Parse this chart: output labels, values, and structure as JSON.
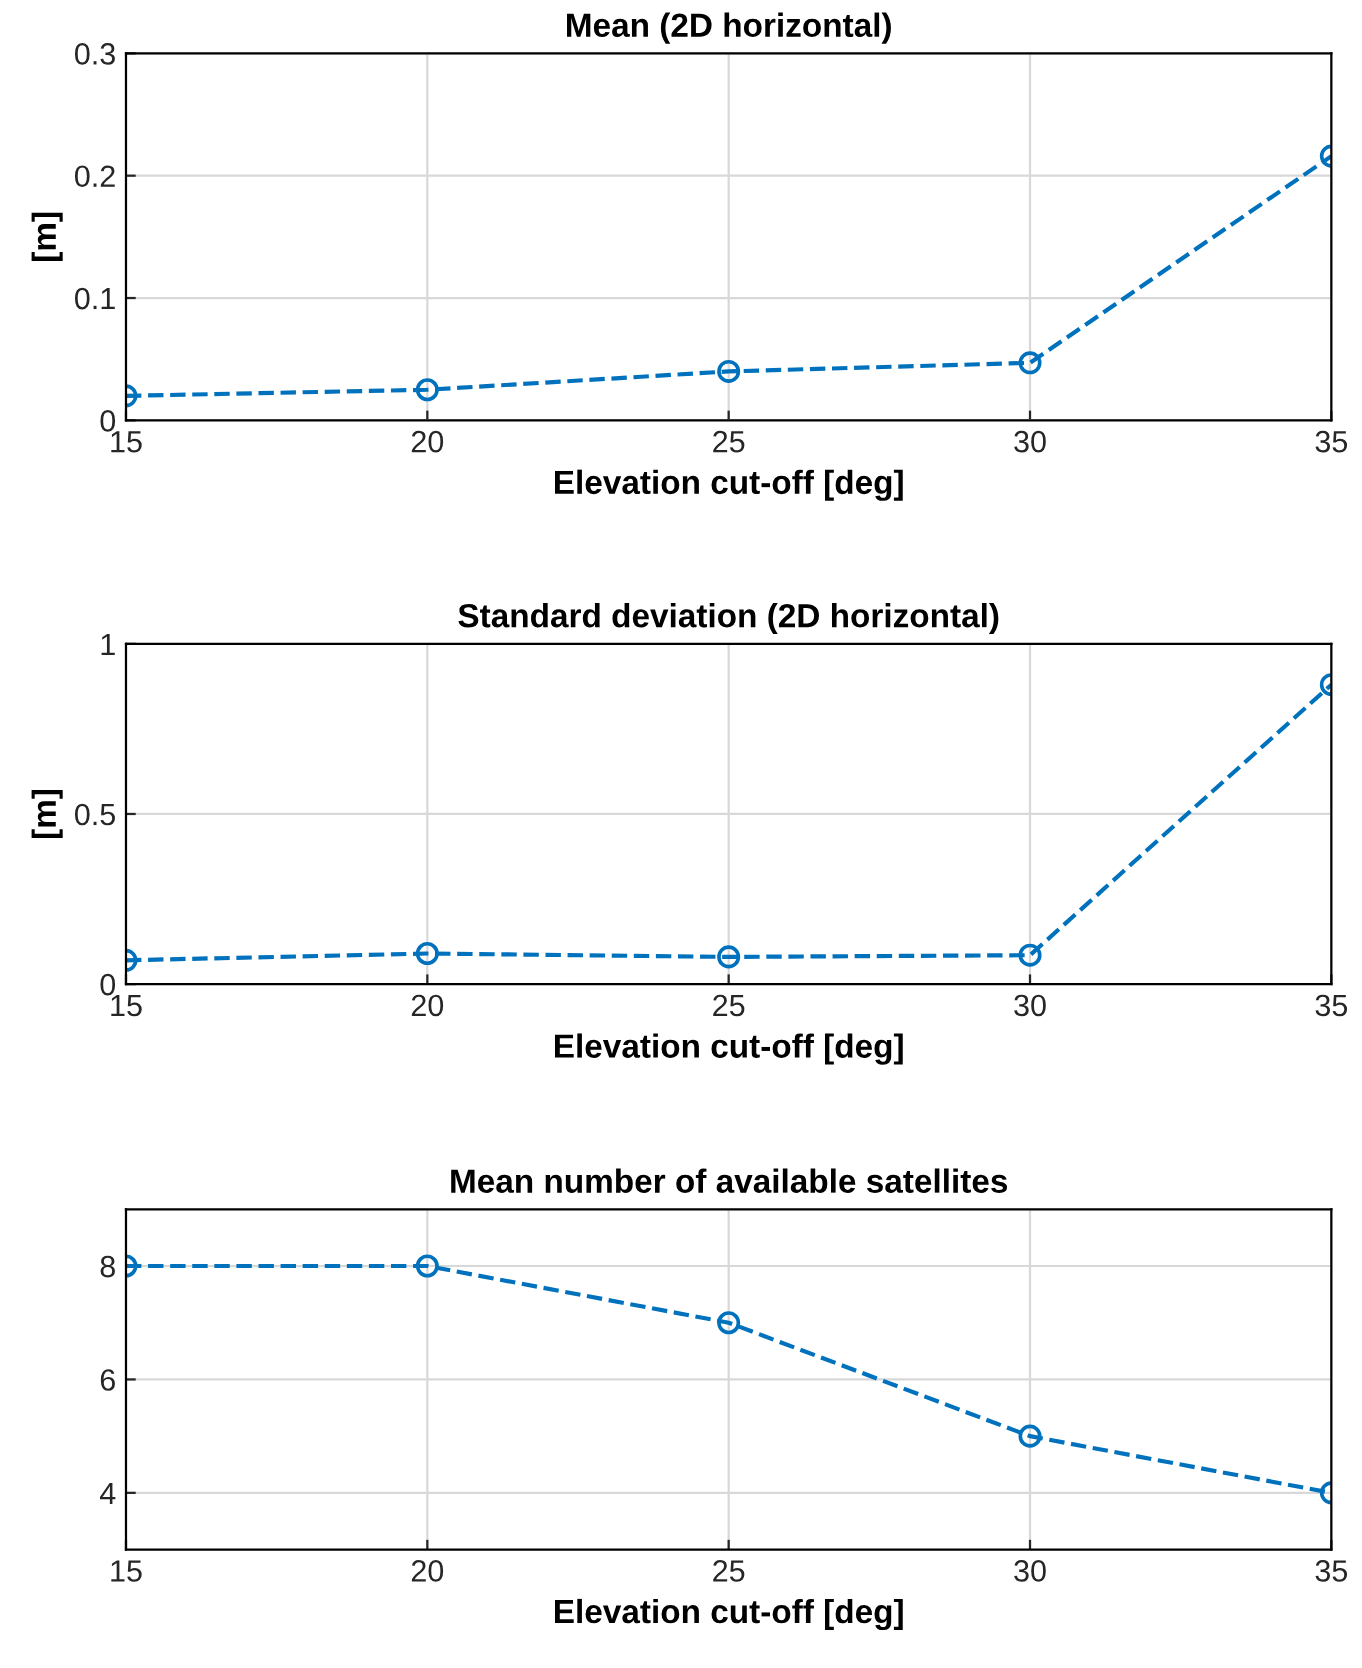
{
  "chart_data": [
    {
      "type": "line",
      "title": "Mean (2D horizontal)",
      "xlabel": "Elevation cut-off [deg]",
      "ylabel": "[m]",
      "x": [
        15,
        20,
        25,
        30,
        35
      ],
      "series": [
        {
          "color": "#0072bd",
          "values": [
            0.02,
            0.025,
            0.04,
            0.047,
            0.216
          ]
        }
      ],
      "xlim": [
        15,
        35
      ],
      "xticks": [
        15,
        20,
        25,
        30,
        35
      ],
      "ylim": [
        0,
        0.3
      ],
      "yticks": [
        0,
        0.1,
        0.2,
        0.3
      ],
      "grid": true,
      "marker": "circle",
      "line_style": "dashed"
    },
    {
      "type": "line",
      "title": "Standard deviation (2D horizontal)",
      "xlabel": "Elevation cut-off [deg]",
      "ylabel": "[m]",
      "x": [
        15,
        20,
        25,
        30,
        35
      ],
      "series": [
        {
          "color": "#0072bd",
          "values": [
            0.07,
            0.09,
            0.08,
            0.085,
            0.88
          ]
        }
      ],
      "xlim": [
        15,
        35
      ],
      "xticks": [
        15,
        20,
        25,
        30,
        35
      ],
      "ylim": [
        0,
        1
      ],
      "yticks": [
        0,
        0.5,
        1
      ],
      "grid": true,
      "marker": "circle",
      "line_style": "dashed"
    },
    {
      "type": "line",
      "title": "Mean number of available satellites",
      "xlabel": "Elevation cut-off [deg]",
      "x": [
        15,
        20,
        25,
        30,
        35
      ],
      "series": [
        {
          "color": "#0072bd",
          "values": [
            8,
            8,
            7,
            5,
            4
          ]
        }
      ],
      "xlim": [
        15,
        35
      ],
      "xticks": [
        15,
        20,
        25,
        30,
        35
      ],
      "ylim": [
        3,
        9
      ],
      "yticks": [
        4,
        6,
        8
      ],
      "grid": true,
      "marker": "circle",
      "line_style": "dashed"
    }
  ]
}
